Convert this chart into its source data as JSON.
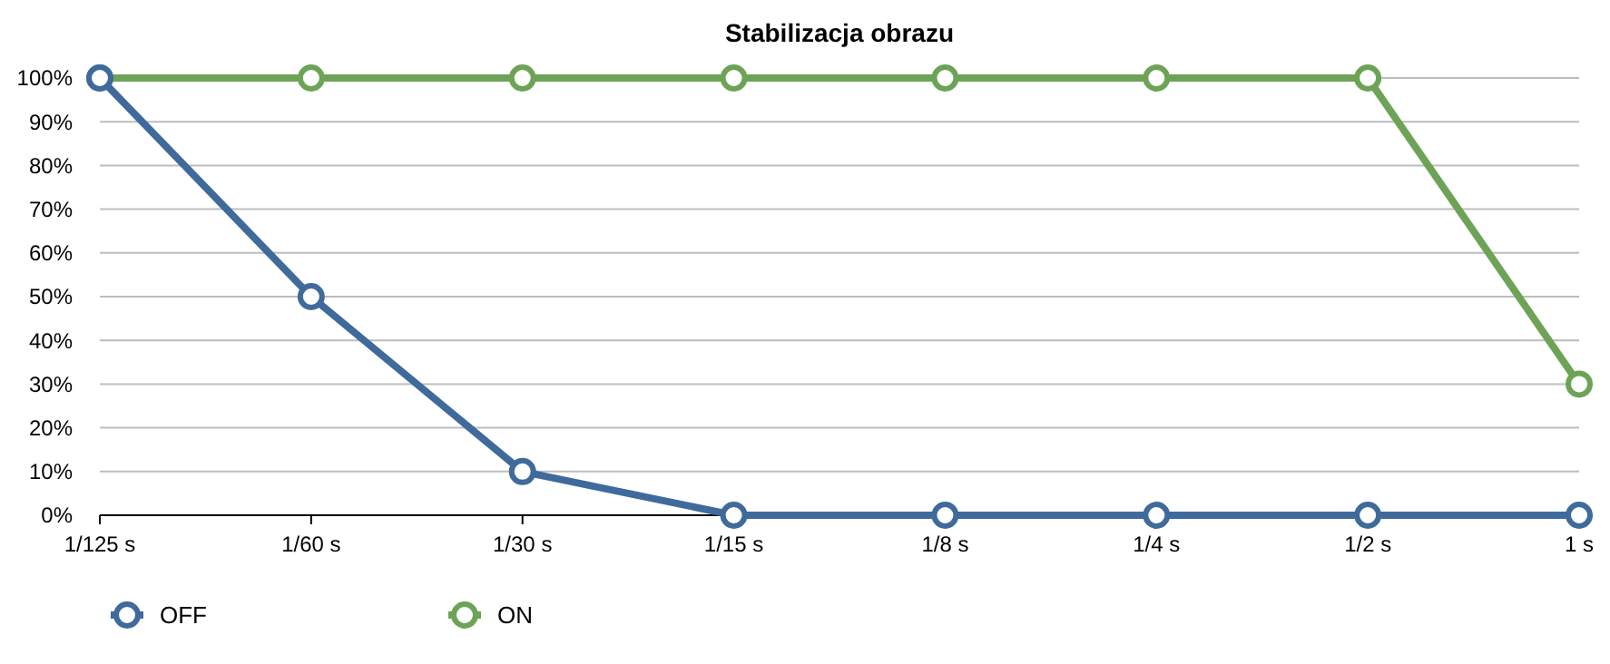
{
  "chart_data": {
    "type": "line",
    "title": "Stabilizacja obrazu",
    "categories": [
      "1/125 s",
      "1/60 s",
      "1/30 s",
      "1/15 s",
      "1/8 s",
      "1/4 s",
      "1/2 s",
      "1 s"
    ],
    "series": [
      {
        "name": "OFF",
        "color": "#3f6a9b",
        "values": [
          100,
          50,
          10,
          0,
          0,
          0,
          0,
          0
        ]
      },
      {
        "name": "ON",
        "color": "#6da356",
        "values": [
          100,
          100,
          100,
          100,
          100,
          100,
          100,
          30
        ]
      }
    ],
    "ylim": [
      0,
      100
    ],
    "yticks": [
      {
        "value": 0,
        "label": "0%"
      },
      {
        "value": 10,
        "label": "10%"
      },
      {
        "value": 20,
        "label": "20%"
      },
      {
        "value": 30,
        "label": "30%"
      },
      {
        "value": 40,
        "label": "40%"
      },
      {
        "value": 50,
        "label": "50%"
      },
      {
        "value": 60,
        "label": "60%"
      },
      {
        "value": 70,
        "label": "70%"
      },
      {
        "value": 80,
        "label": "80%"
      },
      {
        "value": 90,
        "label": "90%"
      },
      {
        "value": 100,
        "label": "100%"
      }
    ],
    "grid": "y",
    "legend": "bottom",
    "marker": "circle",
    "line_style": "solid"
  }
}
